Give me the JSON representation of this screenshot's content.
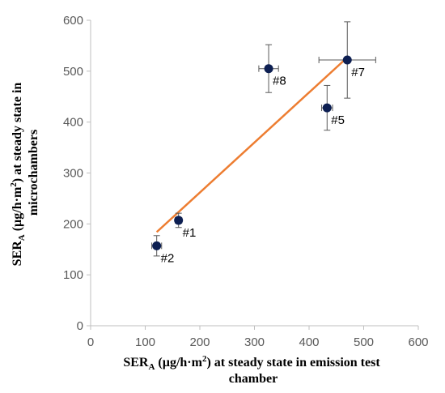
{
  "chart_data": {
    "type": "scatter",
    "xlim": [
      0,
      600
    ],
    "ylim": [
      0,
      600
    ],
    "xticks": [
      0,
      100,
      200,
      300,
      400,
      500,
      600
    ],
    "yticks": [
      0,
      100,
      200,
      300,
      400,
      500,
      600
    ],
    "grid": false,
    "xlabel": {
      "base": "SER",
      "sub": "A",
      "rest": " (µg/h·m",
      "sup": "2",
      "end": ") at steady state in emission test",
      "line2": "chamber"
    },
    "ylabel": {
      "base": "SER",
      "sub": "A",
      "rest": " (µg/h·m",
      "sup": "2",
      "end": ") at steady state in",
      "line2": "microchambers"
    },
    "points": [
      {
        "label": "#1",
        "x": 161,
        "y": 207,
        "xerr": 6,
        "yerr": 14
      },
      {
        "label": "#2",
        "x": 121,
        "y": 157,
        "xerr": 9,
        "yerr": 20
      },
      {
        "label": "#5",
        "x": 433,
        "y": 428,
        "xerr": 10,
        "yerr": 44
      },
      {
        "label": "#7",
        "x": 470,
        "y": 522,
        "xerr": 52,
        "yerr": 75
      },
      {
        "label": "#8",
        "x": 326,
        "y": 505,
        "xerr": 18,
        "yerr": 47
      }
    ],
    "trendline": {
      "x1": 121,
      "y1": 184,
      "x2": 470,
      "y2": 527
    },
    "colors": {
      "marker": "#0d1f52",
      "trendline": "#ed7d31",
      "errorbar": "#595959",
      "axis": "#bfbfbf"
    }
  }
}
